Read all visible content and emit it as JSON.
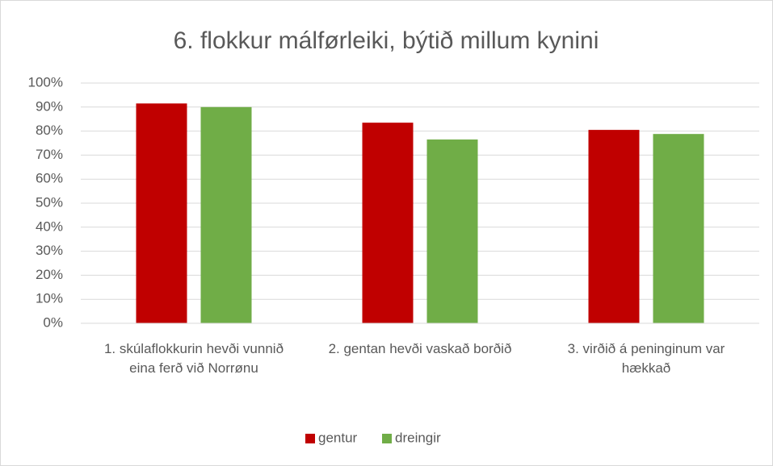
{
  "chart_data": {
    "type": "bar",
    "title": "6. flokkur málførleiki, býtið millum kynini",
    "categories": [
      "1. skúlaflokkurin hevði vunnið eina ferð við Norrønu",
      "2. gentan hevði vaskað borðið",
      "3. virðið á peninginum var hækkað"
    ],
    "series": [
      {
        "name": "gentur",
        "color": "#c00000",
        "values": [
          91.5,
          83.5,
          80.5
        ]
      },
      {
        "name": "dreingir",
        "color": "#70ad47",
        "values": [
          90,
          76.5,
          78.8
        ]
      }
    ],
    "ylim": [
      0,
      100
    ],
    "yticks": [
      {
        "value": 0,
        "label": "0%"
      },
      {
        "value": 10,
        "label": "10%"
      },
      {
        "value": 20,
        "label": "20%"
      },
      {
        "value": 30,
        "label": "30%"
      },
      {
        "value": 40,
        "label": "40%"
      },
      {
        "value": 50,
        "label": "50%"
      },
      {
        "value": 60,
        "label": "60%"
      },
      {
        "value": 70,
        "label": "70%"
      },
      {
        "value": 80,
        "label": "80%"
      },
      {
        "value": 90,
        "label": "90%"
      },
      {
        "value": 100,
        "label": "100%"
      }
    ],
    "grid": true,
    "legend": "bottom"
  }
}
